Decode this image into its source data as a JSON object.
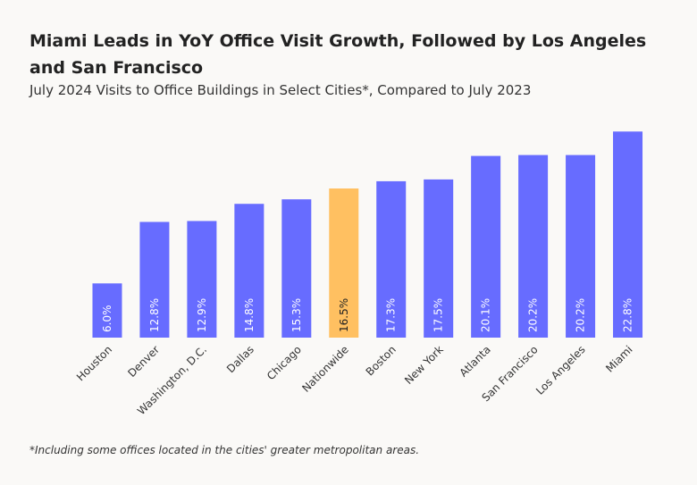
{
  "chart_data": {
    "type": "bar",
    "title": "Miami Leads in YoY Office Visit Growth, Followed by Los Angeles and San Francisco",
    "subtitle": "July 2024 Visits to Office Buildings in Select Cities*, Compared to July 2023",
    "footnote": "*Including some offices located in the cities' greater metropolitan areas.",
    "categories": [
      "Houston",
      "Denver",
      "Washington, D.C.",
      "Dallas",
      "Chicago",
      "Nationwide",
      "Boston",
      "New York",
      "Atlanta",
      "San Francisco",
      "Los Angeles",
      "Miami"
    ],
    "values": [
      6.0,
      12.8,
      12.9,
      14.8,
      15.3,
      16.5,
      17.3,
      17.5,
      20.1,
      20.2,
      20.2,
      22.8
    ],
    "value_labels": [
      "6.0%",
      "12.8%",
      "12.9%",
      "14.8%",
      "15.3%",
      "16.5%",
      "17.3%",
      "17.5%",
      "20.1%",
      "20.2%",
      "20.2%",
      "22.8%"
    ],
    "colors": [
      "#676cff",
      "#676cff",
      "#676cff",
      "#676cff",
      "#676cff",
      "#ffc061",
      "#676cff",
      "#676cff",
      "#676cff",
      "#676cff",
      "#676cff",
      "#676cff"
    ],
    "ylim": [
      0,
      25
    ]
  }
}
